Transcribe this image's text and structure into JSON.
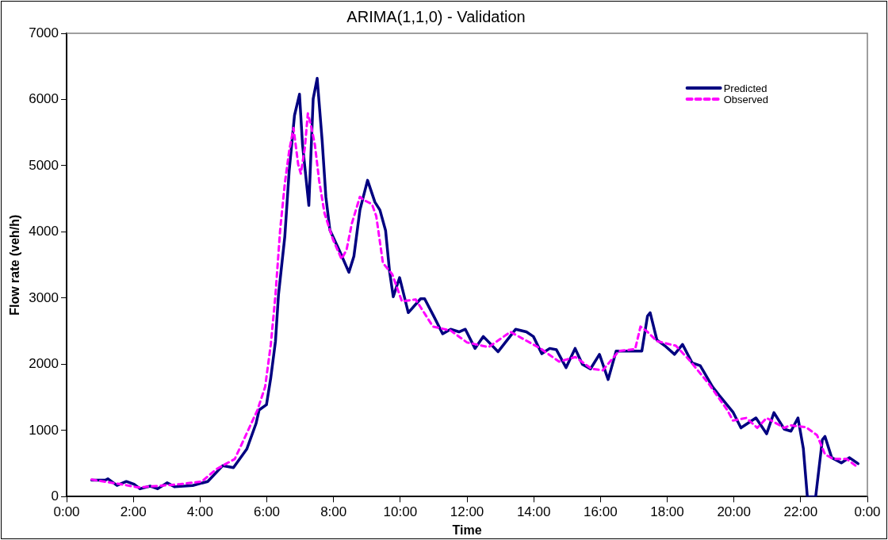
{
  "chart_data": {
    "type": "line",
    "title": "ARIMA(1,1,0) - Validation",
    "xlabel": "Time",
    "ylabel": "Flow rate (veh/h)",
    "xlim": [
      0,
      24
    ],
    "xticks": [
      {
        "value": 0,
        "label": "0:00"
      },
      {
        "value": 2,
        "label": "2:00"
      },
      {
        "value": 4,
        "label": "4:00"
      },
      {
        "value": 6,
        "label": "6:00"
      },
      {
        "value": 8,
        "label": "8:00"
      },
      {
        "value": 10,
        "label": "10:00"
      },
      {
        "value": 12,
        "label": "12:00"
      },
      {
        "value": 14,
        "label": "14:00"
      },
      {
        "value": 16,
        "label": "16:00"
      },
      {
        "value": 18,
        "label": "18:00"
      },
      {
        "value": 20,
        "label": "20:00"
      },
      {
        "value": 22,
        "label": "22:00"
      },
      {
        "value": 24,
        "label": "0:00"
      }
    ],
    "ylim": [
      0,
      7000
    ],
    "yticks": [
      0,
      1000,
      2000,
      3000,
      4000,
      5000,
      6000,
      7000
    ],
    "grid": false,
    "legend": "top right",
    "marker": "none",
    "series": [
      {
        "name": "Predicted",
        "color": "#000080",
        "line_style": "solid",
        "x": [
          0.75,
          1.16,
          1.24,
          1.51,
          1.79,
          2.02,
          2.2,
          2.51,
          2.73,
          3.01,
          3.24,
          3.78,
          4.23,
          4.68,
          5.0,
          5.4,
          5.68,
          5.77,
          5.99,
          6.12,
          6.26,
          6.35,
          6.54,
          6.67,
          6.83,
          6.98,
          7.07,
          7.26,
          7.39,
          7.51,
          7.66,
          7.77,
          7.89,
          8.2,
          8.46,
          8.61,
          8.79,
          9.02,
          9.24,
          9.39,
          9.56,
          9.68,
          9.79,
          9.98,
          10.24,
          10.61,
          10.73,
          11.02,
          11.27,
          11.51,
          11.76,
          11.95,
          12.24,
          12.49,
          12.93,
          13.46,
          13.78,
          13.99,
          14.24,
          14.48,
          14.68,
          14.97,
          15.24,
          15.46,
          15.7,
          15.97,
          16.23,
          16.47,
          17.04,
          17.24,
          17.41,
          17.49,
          17.69,
          17.93,
          18.22,
          18.46,
          18.75,
          18.99,
          19.36,
          19.56,
          19.97,
          20.21,
          20.66,
          20.98,
          21.2,
          21.51,
          21.71,
          21.92,
          22.08,
          22.2,
          22.45,
          22.65,
          22.73,
          22.93,
          23.22,
          23.46,
          23.72
        ],
        "values": [
          250,
          250,
          270,
          170,
          230,
          190,
          120,
          160,
          120,
          210,
          150,
          170,
          230,
          470,
          440,
          720,
          1110,
          1310,
          1390,
          1800,
          2350,
          3050,
          3930,
          4920,
          5760,
          6080,
          5320,
          4400,
          6010,
          6320,
          5370,
          4530,
          4030,
          3690,
          3390,
          3630,
          4330,
          4780,
          4450,
          4330,
          4020,
          3400,
          3020,
          3310,
          2780,
          2990,
          2990,
          2710,
          2460,
          2530,
          2490,
          2530,
          2240,
          2420,
          2190,
          2530,
          2490,
          2420,
          2160,
          2240,
          2220,
          1950,
          2240,
          2000,
          1930,
          2150,
          1770,
          2200,
          2200,
          2200,
          2730,
          2780,
          2370,
          2280,
          2150,
          2300,
          2020,
          1980,
          1660,
          1530,
          1280,
          1040,
          1190,
          950,
          1270,
          1020,
          990,
          1190,
          730,
          0,
          0,
          860,
          910,
          590,
          510,
          590,
          500
        ]
      },
      {
        "name": "Observed",
        "color": "#ff00ff",
        "line_style": "dashed",
        "x": [
          0.75,
          1.61,
          2.15,
          3.41,
          4.05,
          4.5,
          5.04,
          5.4,
          5.72,
          5.95,
          6.12,
          6.26,
          6.4,
          6.54,
          6.67,
          6.8,
          6.94,
          7.02,
          7.14,
          7.23,
          7.34,
          7.44,
          7.57,
          7.73,
          7.98,
          8.24,
          8.39,
          8.55,
          8.79,
          8.91,
          9.15,
          9.28,
          9.48,
          9.76,
          10.05,
          10.46,
          10.98,
          11.51,
          12.0,
          12.65,
          13.3,
          14.2,
          14.76,
          15.25,
          15.74,
          16.07,
          16.55,
          17.04,
          17.2,
          17.41,
          17.69,
          18.26,
          18.67,
          19.24,
          19.8,
          19.97,
          20.37,
          20.7,
          20.98,
          21.51,
          21.68,
          22.16,
          22.49,
          22.73,
          22.98,
          23.38,
          23.72
        ],
        "values": [
          260,
          190,
          140,
          190,
          230,
          420,
          570,
          960,
          1310,
          1660,
          2300,
          3050,
          4030,
          4730,
          5220,
          5570,
          5020,
          4880,
          5270,
          5790,
          5570,
          5320,
          4770,
          4280,
          3890,
          3590,
          3730,
          4130,
          4530,
          4480,
          4420,
          4240,
          3530,
          3360,
          2950,
          2980,
          2570,
          2510,
          2330,
          2260,
          2490,
          2240,
          2040,
          2110,
          1930,
          1910,
          2200,
          2230,
          2570,
          2490,
          2350,
          2280,
          2060,
          1710,
          1310,
          1150,
          1190,
          1040,
          1190,
          1040,
          1080,
          1050,
          930,
          640,
          570,
          570,
          440
        ]
      }
    ]
  }
}
